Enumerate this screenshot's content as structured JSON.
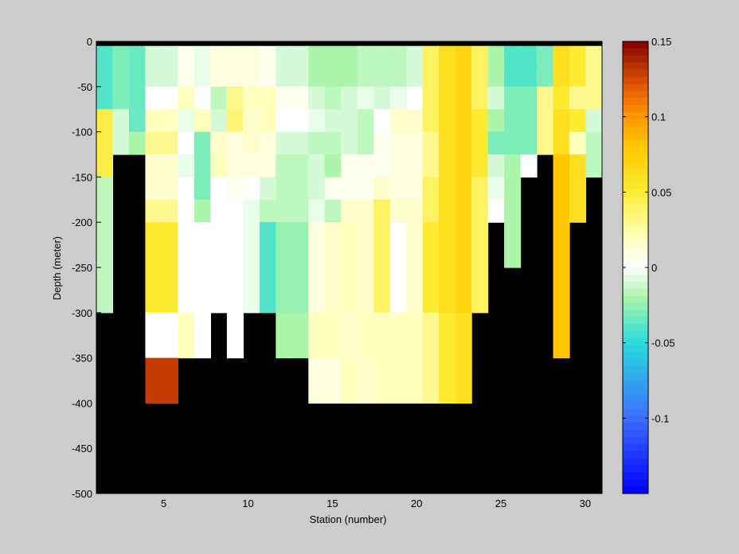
{
  "chart_data": {
    "type": "heatmap",
    "title": "",
    "xlabel": "Station (number)",
    "ylabel": "Depth (meter)",
    "xlim": [
      1,
      31
    ],
    "ylim": [
      -500,
      0
    ],
    "xticks": [
      5,
      10,
      15,
      20,
      25,
      30
    ],
    "yticks": [
      0,
      -50,
      -100,
      -150,
      -200,
      -250,
      -300,
      -350,
      -400,
      -450,
      -500
    ],
    "colorbar": {
      "range": [
        -0.15,
        0.15
      ],
      "ticks": [
        0.15,
        0.1,
        0.05,
        0,
        -0.05,
        -0.1
      ],
      "colormap": "jet-white-center"
    },
    "background_value_color": "#000000",
    "stations": [
      1,
      2,
      3,
      4,
      5,
      6,
      7,
      8,
      9,
      10,
      11,
      12,
      13,
      14,
      15,
      16,
      17,
      18,
      19,
      20,
      21,
      22,
      23,
      24,
      25,
      26,
      27,
      28,
      29,
      30,
      31
    ],
    "depth_bins": [
      0,
      -12.5,
      -25,
      -50,
      -75,
      -100,
      -125,
      -150,
      -175,
      -200,
      -250,
      -300,
      -350,
      -400
    ],
    "data_rows_depth_top": [
      -5,
      -12.5,
      -25,
      -50,
      -75,
      -100,
      -125,
      -150,
      -175,
      -200,
      -250,
      -300,
      -350
    ],
    "values": [
      [
        -0.04,
        -0.03,
        -0.035,
        -0.01,
        -0.01,
        0.005,
        -0.005,
        0.01,
        0.01,
        0.01,
        0.005,
        -0.01,
        -0.01,
        -0.02,
        -0.02,
        -0.02,
        -0.015,
        -0.015,
        -0.015,
        -0.01,
        0.04,
        0.06,
        0.07,
        0.04,
        -0.02,
        -0.04,
        -0.04,
        -0.03,
        0.06,
        0.05,
        0.03
      ],
      [
        -0.04,
        -0.03,
        -0.035,
        -0.01,
        -0.01,
        0.005,
        -0.005,
        0.01,
        0.01,
        0.01,
        0.005,
        -0.01,
        -0.01,
        -0.02,
        -0.02,
        -0.02,
        -0.015,
        -0.015,
        -0.015,
        -0.01,
        0.04,
        0.06,
        0.07,
        0.04,
        -0.02,
        -0.04,
        -0.04,
        -0.03,
        0.06,
        0.05,
        0.03
      ],
      [
        -0.04,
        -0.03,
        -0.035,
        0.0,
        0.0,
        0.02,
        0.0,
        -0.015,
        0.03,
        0.02,
        0.02,
        0.005,
        0.005,
        -0.01,
        -0.015,
        -0.01,
        -0.005,
        -0.01,
        -0.005,
        0.0,
        0.04,
        0.06,
        0.07,
        0.04,
        -0.01,
        -0.03,
        -0.03,
        0.03,
        0.05,
        0.03,
        0.03
      ],
      [
        0.045,
        -0.01,
        -0.035,
        0.02,
        0.02,
        -0.005,
        0.02,
        -0.01,
        0.035,
        0.015,
        0.02,
        0.0,
        0.0,
        -0.005,
        -0.01,
        -0.01,
        -0.015,
        0.0,
        0.015,
        0.015,
        0.04,
        0.06,
        0.07,
        0.05,
        -0.02,
        -0.03,
        -0.03,
        0.03,
        0.06,
        0.05,
        -0.01
      ],
      [
        0.045,
        -0.01,
        -0.02,
        0.03,
        0.03,
        0.0,
        -0.03,
        0.015,
        0.01,
        0.015,
        0.01,
        -0.01,
        -0.01,
        -0.015,
        -0.015,
        -0.01,
        -0.015,
        0.005,
        0.01,
        0.01,
        0.03,
        0.06,
        0.07,
        0.05,
        -0.03,
        -0.03,
        -0.03,
        0.03,
        0.06,
        0.02,
        -0.015
      ],
      [
        0.045,
        null,
        null,
        0.015,
        0.015,
        -0.005,
        -0.03,
        0.02,
        0.01,
        0.01,
        0.01,
        -0.015,
        -0.015,
        -0.01,
        -0.02,
        0.005,
        0.005,
        0.005,
        0.01,
        0.01,
        0.03,
        0.06,
        0.07,
        0.05,
        -0.01,
        -0.02,
        0.0,
        null,
        0.08,
        0.06,
        -0.015
      ],
      [
        -0.015,
        null,
        null,
        0.015,
        0.015,
        0.0,
        -0.03,
        0.0,
        0.005,
        0.0,
        -0.01,
        -0.015,
        -0.015,
        -0.01,
        0.005,
        0.005,
        0.005,
        0.015,
        0.01,
        0.01,
        0.04,
        0.06,
        0.07,
        0.04,
        -0.005,
        -0.02,
        null,
        null,
        0.08,
        0.06,
        null
      ],
      [
        -0.015,
        null,
        null,
        0.03,
        0.03,
        0.0,
        -0.02,
        0.0,
        0.0,
        -0.005,
        -0.015,
        -0.015,
        -0.015,
        -0.005,
        -0.015,
        0.015,
        0.015,
        0.04,
        0.015,
        0.015,
        0.04,
        0.06,
        0.07,
        0.04,
        0.0,
        -0.02,
        null,
        null,
        0.08,
        0.06,
        null
      ],
      [
        -0.015,
        null,
        null,
        0.05,
        0.05,
        0.0,
        0.0,
        0.0,
        0.0,
        -0.005,
        -0.04,
        -0.025,
        -0.025,
        0.01,
        0.015,
        0.02,
        0.015,
        0.04,
        0.0,
        0.015,
        0.05,
        0.06,
        0.07,
        0.04,
        null,
        -0.02,
        null,
        null,
        0.08,
        null,
        null
      ],
      [
        -0.015,
        null,
        null,
        0.05,
        0.05,
        0.0,
        0.0,
        0.0,
        0.0,
        -0.005,
        -0.04,
        -0.025,
        -0.025,
        0.01,
        0.015,
        0.02,
        0.015,
        0.04,
        0.0,
        0.015,
        0.05,
        0.06,
        0.07,
        0.04,
        null,
        null,
        null,
        null,
        0.08,
        null,
        null
      ],
      [
        null,
        null,
        null,
        0.0,
        0.0,
        0.02,
        0.0,
        null,
        0.0,
        null,
        null,
        -0.02,
        -0.02,
        0.02,
        0.02,
        0.015,
        0.02,
        0.02,
        0.02,
        0.02,
        0.03,
        0.05,
        0.06,
        null,
        null,
        null,
        null,
        null,
        0.08,
        null,
        null
      ],
      [
        null,
        null,
        null,
        0.13,
        0.13,
        null,
        null,
        null,
        null,
        null,
        null,
        null,
        null,
        0.01,
        0.01,
        0.02,
        0.015,
        0.02,
        0.02,
        0.02,
        0.03,
        0.05,
        0.06,
        null,
        null,
        null,
        null,
        null,
        null,
        null,
        null
      ],
      [
        null,
        null,
        null,
        null,
        null,
        null,
        null,
        null,
        null,
        null,
        null,
        null,
        null,
        null,
        null,
        0.005,
        0.015,
        0.025,
        0.025,
        0.025,
        0.03,
        null,
        null,
        null,
        null,
        null,
        null,
        null,
        null,
        null,
        null
      ]
    ]
  }
}
